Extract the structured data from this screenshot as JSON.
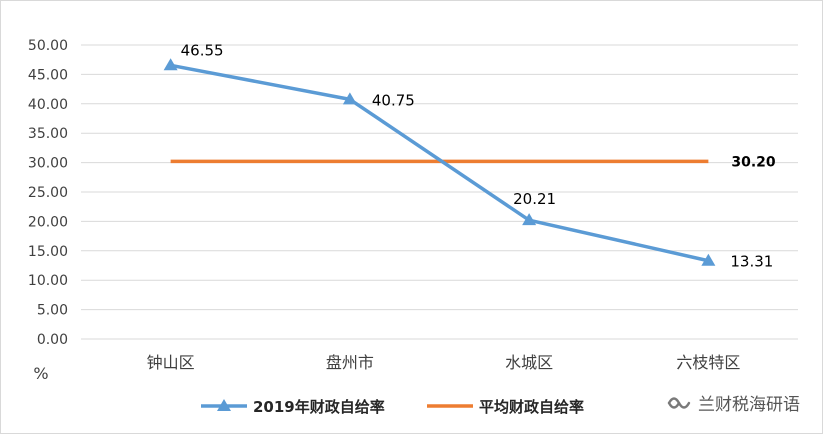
{
  "chart_data": {
    "type": "line",
    "categories": [
      "钟山区",
      "盘州市",
      "水城区",
      "六枝特区"
    ],
    "series": [
      {
        "name": "2019年财政自给率",
        "values": [
          46.55,
          40.75,
          20.21,
          13.31
        ],
        "labels": [
          "46.55",
          "40.75",
          "20.21",
          "13.31"
        ],
        "color": "#5b9bd5",
        "marker": "triangle"
      },
      {
        "name": "平均财政自给率",
        "values": [
          30.2,
          30.2,
          30.2,
          30.2
        ],
        "end_label": "30.20",
        "color": "#ed7d31",
        "marker": "none"
      }
    ],
    "ylabel": "%",
    "ylim": [
      0,
      50
    ],
    "yticks": [
      "0.00",
      "5.00",
      "10.00",
      "15.00",
      "20.00",
      "25.00",
      "30.00",
      "35.00",
      "40.00",
      "45.00",
      "50.00"
    ],
    "grid": true,
    "legend": "bottom"
  },
  "watermark": {
    "text": "兰财税海研语",
    "icon": "wechat-channel-icon"
  }
}
